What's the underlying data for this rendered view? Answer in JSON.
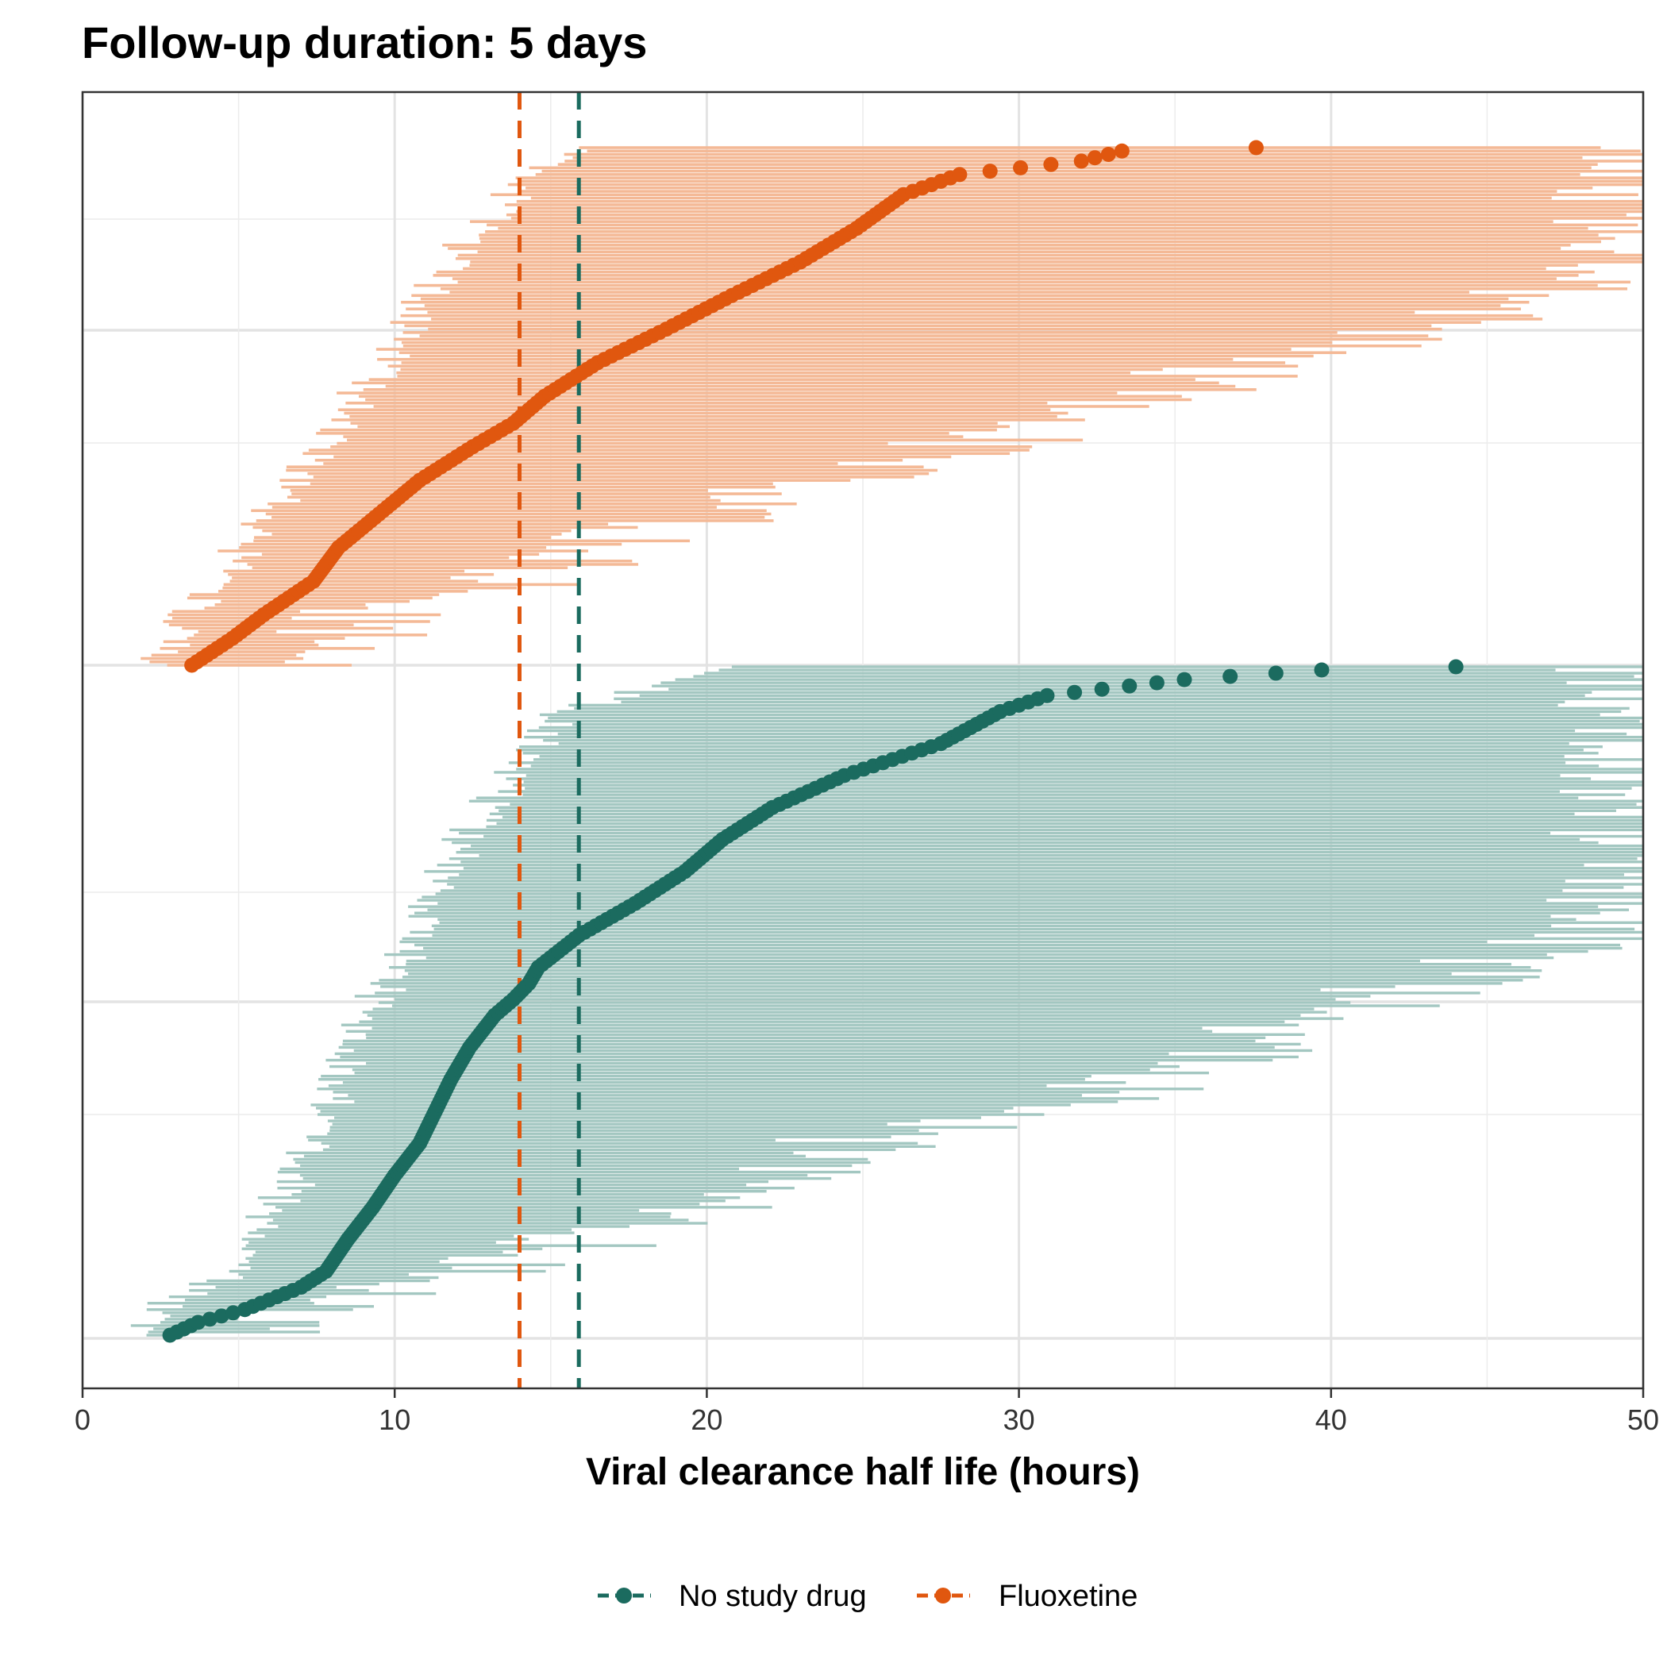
{
  "chart_data": {
    "type": "forest-ci-plot",
    "title": "Follow-up duration: 5 days",
    "xlabel": "Viral clearance half life (hours)",
    "ylabel": "",
    "xlim": [
      0,
      50
    ],
    "x_ticks": [
      0,
      10,
      20,
      30,
      40,
      50
    ],
    "grid": true,
    "legend_position": "bottom",
    "reference_lines": [
      {
        "series": "Fluoxetine",
        "x": 14.0,
        "style": "dashed"
      },
      {
        "series": "No study drug",
        "x": 15.9,
        "style": "dashed"
      }
    ],
    "series": [
      {
        "name": "No study drug",
        "color": "#1b6b5f",
        "ci_color": "#a3c7c1",
        "n": 210,
        "estimate_anchors": [
          [
            0,
            2.8
          ],
          [
            4,
            3.7
          ],
          [
            8,
            5.2
          ],
          [
            15,
            7.0
          ],
          [
            20,
            7.8
          ],
          [
            30,
            8.5
          ],
          [
            40,
            9.3
          ],
          [
            50,
            10.0
          ],
          [
            60,
            10.8
          ],
          [
            70,
            11.3
          ],
          [
            80,
            11.8
          ],
          [
            90,
            12.4
          ],
          [
            100,
            13.2
          ],
          [
            105,
            13.8
          ],
          [
            110,
            14.3
          ],
          [
            115,
            14.6
          ],
          [
            125,
            15.9
          ],
          [
            135,
            17.7
          ],
          [
            145,
            19.3
          ],
          [
            155,
            20.5
          ],
          [
            165,
            22.1
          ],
          [
            175,
            24.4
          ],
          [
            185,
            27.5
          ],
          [
            195,
            29.4
          ],
          [
            200,
            30.9
          ],
          [
            205,
            35.3
          ],
          [
            208,
            39.7
          ],
          [
            209,
            44.0
          ]
        ],
        "ci_lower_anchors": [
          [
            0,
            1.8
          ],
          [
            10,
            2.7
          ],
          [
            20,
            4.8
          ],
          [
            40,
            6.2
          ],
          [
            60,
            7.5
          ],
          [
            80,
            8.2
          ],
          [
            100,
            9.0
          ],
          [
            120,
            10.5
          ],
          [
            140,
            11.4
          ],
          [
            160,
            12.5
          ],
          [
            180,
            14.3
          ],
          [
            195,
            15.5
          ],
          [
            209,
            20.7
          ]
        ],
        "ci_upper_anchors": [
          [
            0,
            4.3
          ],
          [
            10,
            7.6
          ],
          [
            20,
            12.6
          ],
          [
            30,
            16.5
          ],
          [
            45,
            20.8
          ],
          [
            60,
            24.6
          ],
          [
            75,
            33.1
          ],
          [
            90,
            36.8
          ],
          [
            110,
            43.1
          ],
          [
            130,
            49.5
          ],
          [
            150,
            50.0
          ],
          [
            209,
            50.0
          ]
        ]
      },
      {
        "name": "Fluoxetine",
        "color": "#e0570f",
        "ci_color": "#f4b996",
        "n": 155,
        "estimate_anchors": [
          [
            0,
            3.5
          ],
          [
            8,
            4.8
          ],
          [
            15,
            5.8
          ],
          [
            25,
            7.4
          ],
          [
            35,
            8.2
          ],
          [
            45,
            9.5
          ],
          [
            55,
            10.8
          ],
          [
            65,
            12.5
          ],
          [
            72,
            13.8
          ],
          [
            80,
            14.8
          ],
          [
            90,
            16.5
          ],
          [
            100,
            18.7
          ],
          [
            110,
            20.8
          ],
          [
            120,
            23.0
          ],
          [
            130,
            24.8
          ],
          [
            140,
            26.3
          ],
          [
            146,
            28.1
          ],
          [
            150,
            32.0
          ],
          [
            153,
            33.3
          ],
          [
            154,
            37.6
          ]
        ],
        "ci_lower_anchors": [
          [
            0,
            2.3
          ],
          [
            15,
            3.3
          ],
          [
            30,
            4.8
          ],
          [
            50,
            6.4
          ],
          [
            70,
            8.1
          ],
          [
            90,
            9.6
          ],
          [
            110,
            11.0
          ],
          [
            130,
            12.6
          ],
          [
            145,
            14.5
          ],
          [
            154,
            16.2
          ]
        ],
        "ci_upper_anchors": [
          [
            0,
            6.4
          ],
          [
            15,
            9.5
          ],
          [
            30,
            15.9
          ],
          [
            45,
            19.8
          ],
          [
            60,
            26.4
          ],
          [
            75,
            32.1
          ],
          [
            90,
            37.6
          ],
          [
            105,
            45.3
          ],
          [
            120,
            49.8
          ],
          [
            135,
            50.0
          ],
          [
            154,
            50.0
          ]
        ]
      }
    ]
  },
  "legend": {
    "items": [
      {
        "label": "No study drug",
        "color": "#1b6b5f"
      },
      {
        "label": "Fluoxetine",
        "color": "#e0570f"
      }
    ]
  }
}
